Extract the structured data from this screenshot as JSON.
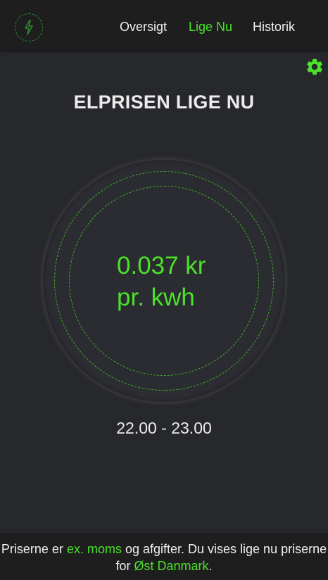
{
  "header": {
    "logo_icon": "lightning-bolt-icon",
    "nav": [
      {
        "label": "Oversigt",
        "active": false
      },
      {
        "label": "Lige Nu",
        "active": true
      },
      {
        "label": "Historik",
        "active": false
      }
    ]
  },
  "settings_icon": "gear-icon",
  "main": {
    "title": "ELPRISEN LIGE NU",
    "price": "0.037 kr",
    "unit": "pr. kwh",
    "period": "22.00 - 23.00"
  },
  "footer": {
    "text1": "Priserne er ",
    "vat": "ex. moms",
    "text2": " og afgifter. Du vises lige nu priserne for ",
    "region": "Øst Danmark",
    "text3": "."
  },
  "colors": {
    "accent": "#4ae22a",
    "background": "#27282c",
    "header": "#1e1e1f"
  }
}
